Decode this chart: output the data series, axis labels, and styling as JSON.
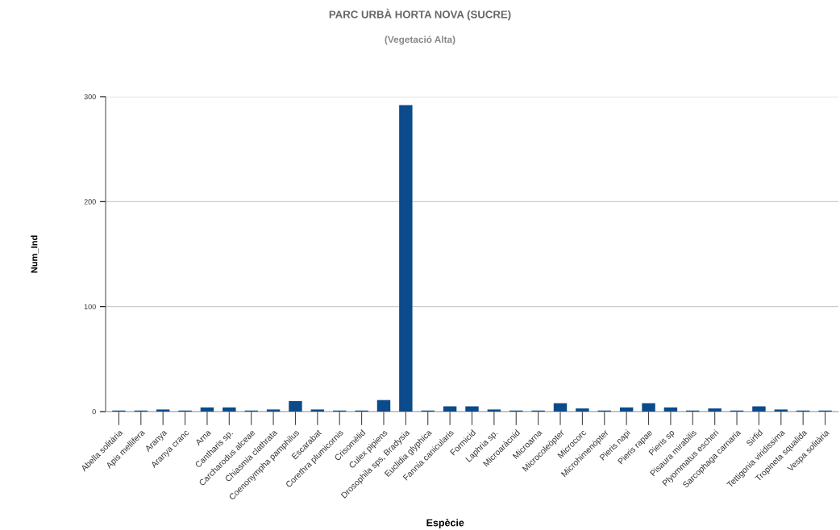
{
  "chart_data": {
    "type": "bar",
    "title": "PARC URBÀ HORTA NOVA (SUCRE)",
    "subtitle": "(Vegetació Alta)",
    "xlabel": "Espècie",
    "ylabel": "Num_Ind",
    "categories": [
      "Abella solitària",
      "Apis mellifera",
      "Aranya",
      "Aranya cranc",
      "Arna",
      "Cantharis sp.",
      "Carcharodus alceae",
      "Chiasmia clathrata",
      "Coenonympha pamphilus",
      "Escarabat",
      "Corethra plumicornis",
      "Crisomèlid",
      "Culex pipiens",
      "Drosophila sps, Bradysia",
      "Euclidia glyphica",
      "Fannia canicularis",
      "Formicid",
      "Laphria sp.",
      "Microaràcnid",
      "Microarna",
      "Microcoleòpter",
      "Microcorc",
      "Microhimenòpter",
      "Pieris napi",
      "Pieris rapae",
      "Pieris sp",
      "Pisaura mirabilis",
      "Plyommatus escheri",
      "Sarcophaga carnaria",
      "Sirfid",
      "Tettigonia viridissima",
      "Tropineta squalida",
      "Vespa solitària"
    ],
    "values": [
      1,
      1,
      2,
      1,
      4,
      4,
      1,
      2,
      10,
      2,
      1,
      1,
      11,
      292,
      1,
      5,
      5,
      2,
      1,
      1,
      8,
      3,
      1,
      4,
      8,
      4,
      1,
      3,
      1,
      5,
      2,
      1,
      1
    ],
    "color": "#0b4a8b",
    "ylim": [
      0,
      300
    ],
    "yticks": [
      0,
      100,
      200,
      300
    ],
    "grid": "y"
  }
}
